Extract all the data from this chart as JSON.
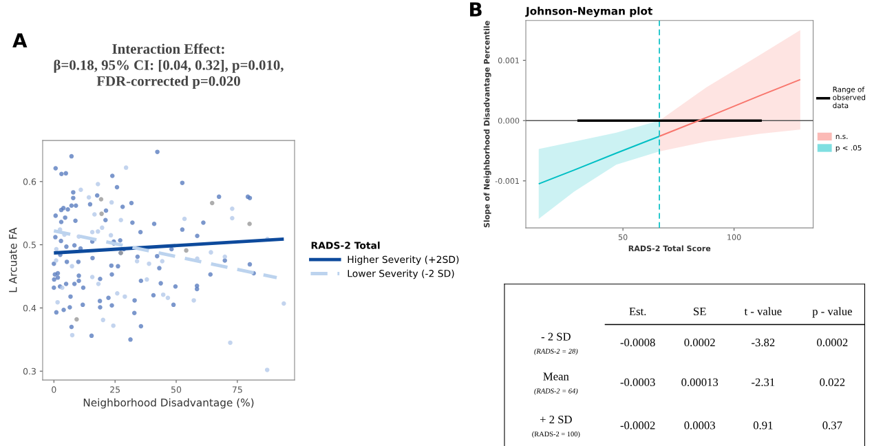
{
  "chart_data": [
    {
      "type": "scatter",
      "title": "Interaction Effect:\nβ=0.18, 95% CI: [0.04, 0.32], p=0.010,\nFDR-corrected p=0.020",
      "xlabel": "Neighborhood Disadvantage (%)",
      "ylabel": "L Arcuate FA",
      "legend_title": "RADS-2 Total",
      "legend": "right",
      "annotations": [
        "A"
      ],
      "xlim": [
        -4.6,
        98.4
      ],
      "ylim": [
        0.286,
        0.665
      ],
      "xticks": [
        0,
        25,
        50,
        75
      ],
      "yticks": [
        0.3,
        0.4,
        0.5,
        0.6
      ],
      "series": [
        {
          "type": "scatter",
          "marker": "circle",
          "color": "#5a7dbf",
          "x": [
            0.7,
            3.1,
            4.9,
            7.2,
            42.3,
            23.9,
            25.8,
            52.5,
            7.9,
            7.9,
            7.2,
            9.0,
            3.0,
            3.9,
            5.7,
            4.6,
            0.7,
            8.8,
            3.0,
            14.8,
            17.7,
            21.3,
            21.1,
            28.1,
            31.7,
            32.1,
            41.0,
            35.4,
            67.5,
            79.3,
            80.1,
            61.1,
            52.5,
            58.6,
            0.6,
            2.9,
            5.1,
            8.4,
            10.9,
            15.7,
            24.5,
            24.5,
            27.1,
            28.6,
            48.1,
            42.2,
            34.2,
            69.9,
            80.1,
            64.0,
            81.7,
            43.1,
            2.6,
            10.0,
            5.3,
            0.0,
            0.4,
            1.6,
            0.1,
            1.6,
            0.0,
            2.5,
            5.0,
            8.4,
            10.2,
            10.2,
            12.0,
            18.9,
            23.5,
            23.7,
            26.2,
            35.6,
            40.7,
            43.7,
            49.7,
            58.5,
            58.5,
            6.8,
            6.5,
            4.0,
            1.0,
            11.8,
            18.8,
            18.9,
            22.3,
            23.7,
            33.0,
            32.9,
            48.9,
            7.2,
            15.4,
            35.6,
            31.3,
            15.8,
            27.3
          ],
          "values": [
            0.621,
            0.612,
            0.613,
            0.64,
            0.647,
            0.609,
            0.591,
            0.598,
            0.583,
            0.574,
            0.562,
            0.562,
            0.555,
            0.558,
            0.556,
            0.543,
            0.546,
            0.538,
            0.536,
            0.564,
            0.578,
            0.554,
            0.539,
            0.56,
            0.566,
            0.535,
            0.533,
            0.52,
            0.576,
            0.576,
            0.574,
            0.535,
            0.524,
            0.514,
            0.512,
            0.506,
            0.497,
            0.499,
            0.494,
            0.505,
            0.505,
            0.502,
            0.507,
            0.493,
            0.493,
            0.482,
            0.481,
            0.475,
            0.469,
            0.453,
            0.455,
            0.463,
            0.484,
            0.473,
            0.473,
            0.47,
            0.453,
            0.455,
            0.445,
            0.448,
            0.432,
            0.434,
            0.438,
            0.438,
            0.451,
            0.443,
            0.432,
            0.446,
            0.467,
            0.453,
            0.466,
            0.443,
            0.42,
            0.439,
            0.434,
            0.435,
            0.43,
            0.418,
            0.401,
            0.397,
            0.393,
            0.405,
            0.411,
            0.401,
            0.416,
            0.404,
            0.412,
            0.392,
            0.405,
            0.37,
            0.356,
            0.371,
            0.35,
            0.479,
            0.487
          ]
        },
        {
          "type": "scatter",
          "marker": "circle",
          "color": "#b4c9ea",
          "x": [
            18.0,
            11.0,
            14.3,
            23.6,
            16.6,
            27.4,
            29.5,
            2.5,
            4.3,
            1.0,
            0.9,
            7.4,
            10.2,
            18.0,
            19.7,
            23.3,
            34.0,
            38.9,
            44.3,
            53.4,
            58.6,
            64.2,
            69.9,
            72.9,
            72.9,
            38.0,
            25.9,
            29.0,
            44.7,
            46.6,
            57.2,
            94.0,
            72.1,
            87.2,
            1.5,
            15.7,
            18.2,
            24.3,
            20.1,
            3.4,
            7.5,
            87.3,
            15.7
          ],
          "values": [
            0.596,
            0.587,
            0.575,
            0.567,
            0.548,
            0.539,
            0.622,
            0.524,
            0.516,
            0.493,
            0.475,
            0.466,
            0.513,
            0.521,
            0.527,
            0.515,
            0.474,
            0.47,
            0.474,
            0.541,
            0.478,
            0.488,
            0.481,
            0.542,
            0.557,
            0.445,
            0.423,
            0.418,
            0.421,
            0.416,
            0.412,
            0.407,
            0.345,
            0.302,
            0.409,
            0.449,
            0.438,
            0.372,
            0.381,
            0.432,
            0.357,
            0.509,
            0.52
          ]
        },
        {
          "type": "scatter",
          "marker": "circle",
          "color": "#999999",
          "x": [
            64.7,
            80.0,
            19.3,
            19.5,
            54.1,
            27.4,
            9.3
          ],
          "values": [
            0.566,
            0.533,
            0.572,
            0.549,
            0.491,
            0.487,
            0.382
          ]
        },
        {
          "type": "line",
          "name": "Higher Severity (+2SD)",
          "color": "#0d4a9c",
          "line_style": "solid",
          "x": [
            0,
            94
          ],
          "values": [
            0.487,
            0.509
          ]
        },
        {
          "type": "line",
          "name": "Lower Severity (-2 SD)",
          "color": "#bcd3ee",
          "line_style": "dashed",
          "x": [
            0,
            91.1
          ],
          "values": [
            0.522,
            0.448
          ]
        }
      ]
    },
    {
      "type": "line",
      "title": "Johnson-Neyman plot",
      "xlabel": "RADS-2 Total Score",
      "ylabel": "Slope of Neighborhood Disadvantage Percentile",
      "legend": "right",
      "annotations": [
        "B"
      ],
      "xlim": [
        6.3,
        135.6
      ],
      "ylim": [
        -0.00178,
        0.00166
      ],
      "xticks": [
        50,
        100
      ],
      "yticks": [
        {
          "value": -0.001,
          "label": "-0.001"
        },
        {
          "value": 0,
          "label": "0.000"
        },
        {
          "value": 0.001,
          "label": "0.001"
        }
      ],
      "ref_lines": [
        {
          "axis": "y",
          "value": 0,
          "color": "#555555",
          "line_style": "solid"
        },
        {
          "axis": "x",
          "value": 66.4,
          "color": "#00bfc4",
          "line_style": "dashed"
        }
      ],
      "series": [
        {
          "type": "line",
          "name": "Range of\nobserved\ndata",
          "color": "#000000",
          "line_style": "solid",
          "x": [
            29.5,
            112.5
          ],
          "values": [
            0,
            0
          ]
        },
        {
          "type": "line",
          "name": "n.s.",
          "color": "#f8766d",
          "line_style": "solid",
          "x": [
            66.4,
            87.5,
            111.3,
            129.8
          ],
          "values": [
            -0.00026,
            5e-05,
            0.00041,
            0.00068
          ],
          "lower": [
            -0.00051,
            -0.00035,
            -0.00022,
            -0.00015
          ],
          "upper": [
            0,
            0.00055,
            0.00108,
            0.0015
          ]
        },
        {
          "type": "line",
          "name": "p < .05",
          "color": "#00bfc4",
          "line_style": "solid",
          "x": [
            12.1,
            28.0,
            47.0,
            66.4
          ],
          "values": [
            -0.00105,
            -0.00082,
            -0.00054,
            -0.00026
          ],
          "lower": [
            -0.00163,
            -0.00118,
            -0.00073,
            -0.00051
          ],
          "upper": [
            -0.00047,
            -0.00035,
            -0.0002,
            0
          ]
        }
      ]
    },
    {
      "type": "other",
      "categories": [
        "Est.",
        "SE",
        "t - value",
        "p - value"
      ],
      "y_categories": [
        "- 2 SD",
        "Mean",
        "+ 2 SD"
      ],
      "annotations": [
        "(RADS-2 = 28)",
        "(RADS-2 = 64)",
        "(RADS-2 = 100)"
      ],
      "cell_labels": [
        [
          "-0.0008",
          "0.0002",
          "-3.82",
          "0.0002"
        ],
        [
          "-0.0003",
          "0.00013",
          "-2.31",
          "0.022"
        ],
        [
          "-0.0002",
          "0.0003",
          "0.91",
          "0.37"
        ]
      ]
    }
  ]
}
